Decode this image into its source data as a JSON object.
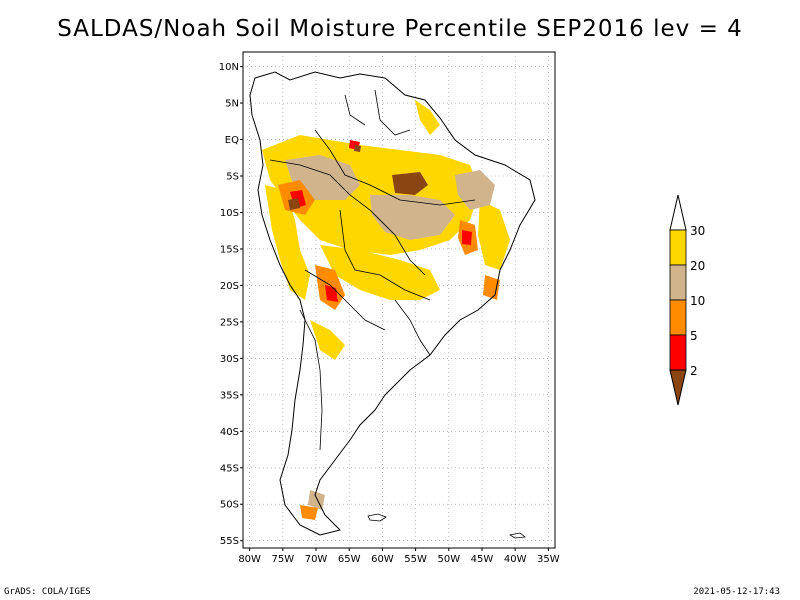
{
  "title": "SALDAS/Noah Soil Moisture Percentile SEP2016 lev = 4",
  "footer": {
    "left": "GrADS: COLA/IGES",
    "right": "2021-05-12-17:43"
  },
  "map": {
    "lat_labels": [
      "10N",
      "5N",
      "EQ",
      "5S",
      "10S",
      "15S",
      "20S",
      "25S",
      "30S",
      "35S",
      "40S",
      "45S",
      "50S",
      "55S"
    ],
    "lon_labels": [
      "80W",
      "75W",
      "70W",
      "65W",
      "60W",
      "55W",
      "50W",
      "45W",
      "40W",
      "35W"
    ],
    "lat_range": [
      -56,
      12
    ],
    "lon_range": [
      -81,
      -34
    ],
    "grid": "dotted"
  },
  "colorbar": {
    "labels": [
      "2",
      "5",
      "10",
      "20",
      "30"
    ],
    "colors": [
      "#8B4513",
      "#ff0000",
      "#ff8c00",
      "#d2b48c",
      "#ffd700",
      "#ffffff"
    ]
  }
}
